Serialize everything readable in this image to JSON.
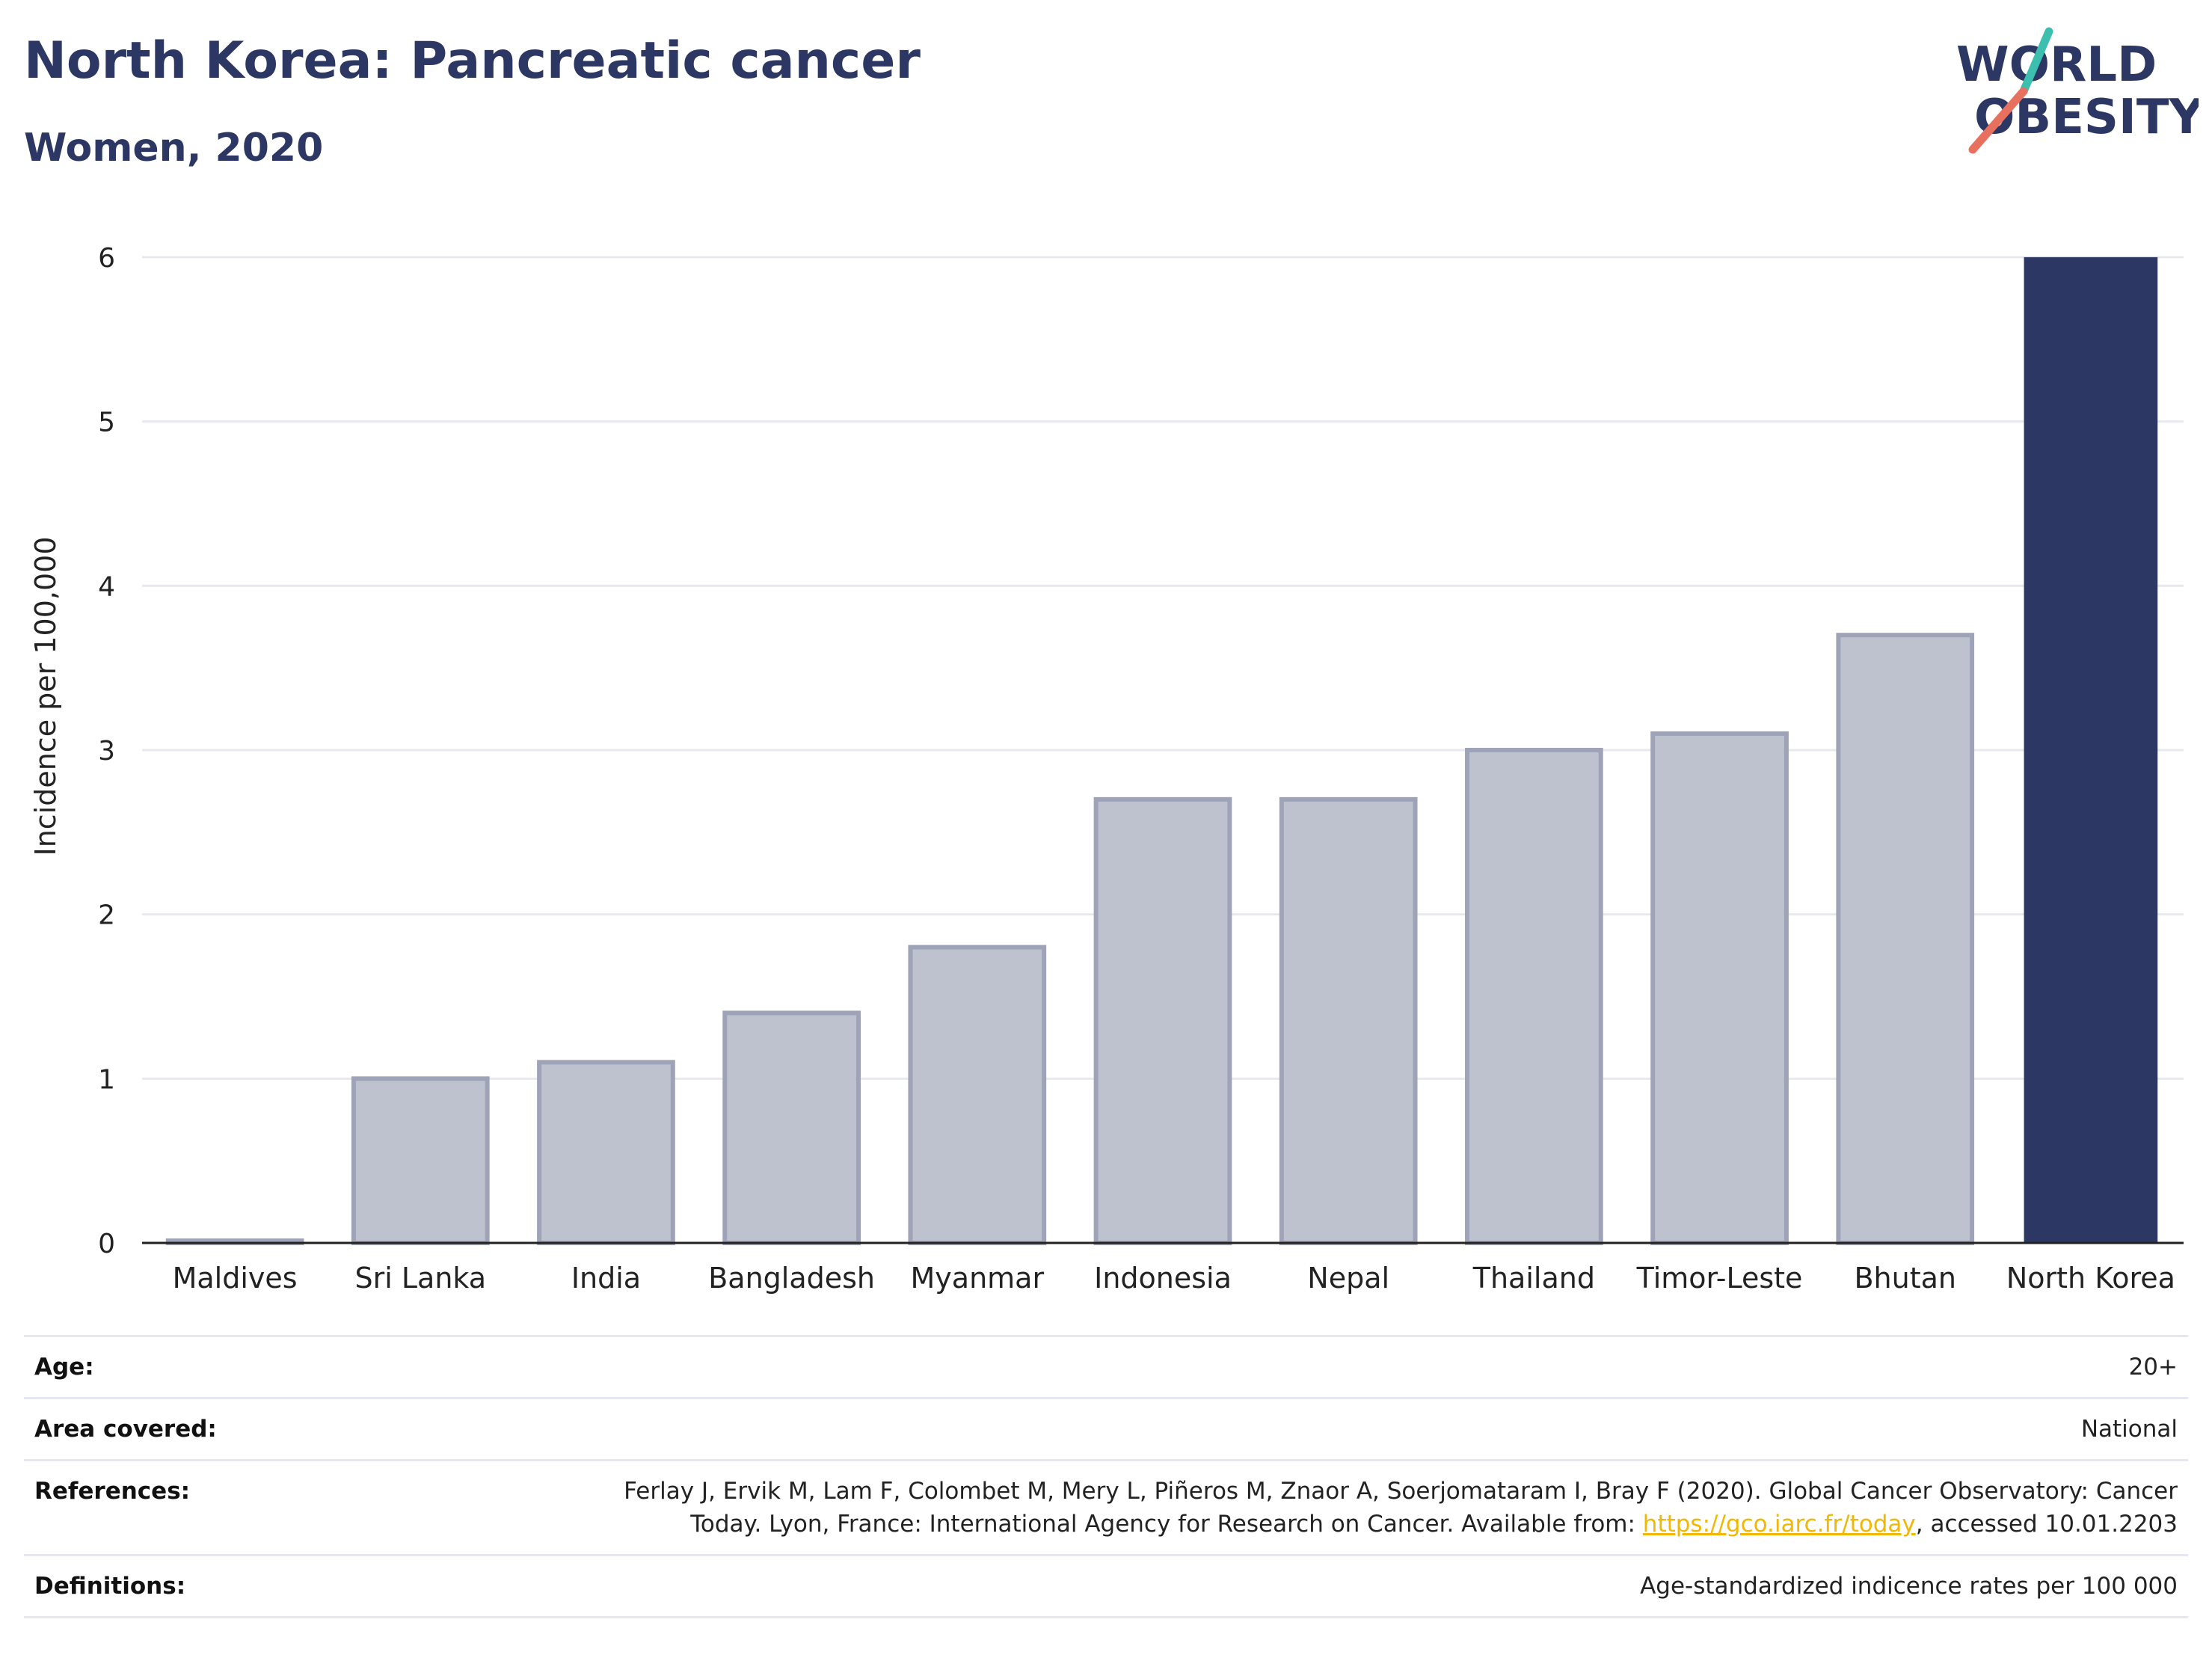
{
  "header": {
    "title": "North Korea: Pancreatic cancer",
    "subtitle": "Women, 2020"
  },
  "logo": {
    "line1": "WORLD",
    "line2": "OBESITY",
    "colors": {
      "text": "#2c3863",
      "slash_teal": "#3dbfb0",
      "slash_coral": "#e8705f"
    }
  },
  "chart_data": {
    "type": "bar",
    "title": "North Korea: Pancreatic cancer",
    "subtitle": "Women, 2020",
    "ylabel": "Incidence per 100,000",
    "xlabel": "",
    "categories": [
      "Maldives",
      "Sri Lanka",
      "India",
      "Bangladesh",
      "Myanmar",
      "Indonesia",
      "Nepal",
      "Thailand",
      "Timor-Leste",
      "Bhutan",
      "North Korea"
    ],
    "values": [
      0.0,
      1.0,
      1.1,
      1.4,
      1.8,
      2.7,
      2.7,
      3.0,
      3.1,
      3.7,
      6.0
    ],
    "highlight": "North Korea",
    "ylim": [
      0,
      6.2
    ],
    "yticks": [
      0,
      1,
      2,
      3,
      4,
      5,
      6
    ],
    "grid": true,
    "colors": {
      "bar": "#bec2cf",
      "bar_edge": "#9ea3b8",
      "highlight": "#2c3863",
      "grid": "#e8e9ee"
    }
  },
  "meta": {
    "age": {
      "label": "Age:",
      "value": "20+"
    },
    "area": {
      "label": "Area covered:",
      "value": "National"
    },
    "references": {
      "label": "References:",
      "line1": "Ferlay J, Ervik M, Lam F, Colombet M, Mery L, Piñeros M, Znaor A, Soerjomataram I, Bray F (2020). Global Cancer Observatory: Cancer",
      "line2_pre": "Today. Lyon, France: International Agency for Research on Cancer. Available from: ",
      "link": "https://gco.iarc.fr/today",
      "line2_post": ", accessed 10.01.2203"
    },
    "definitions": {
      "label": "Definitions:",
      "value": "Age-standardized indicence rates per 100 000"
    }
  }
}
